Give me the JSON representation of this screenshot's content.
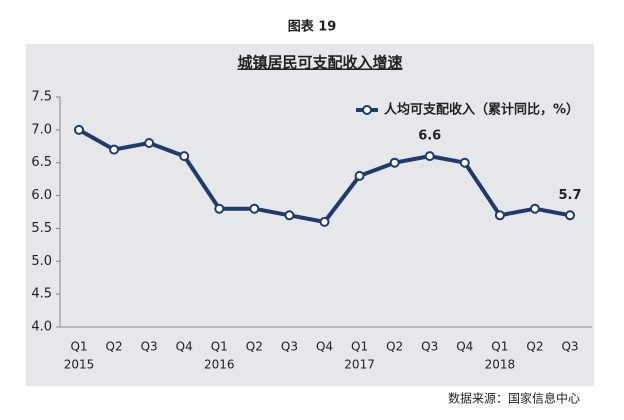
{
  "figure_label": "图表 19",
  "source": "数据来源：国家信息中心",
  "chart_data": {
    "type": "line",
    "title": "城镇居民可支配收入增速",
    "categories": [
      "Q1",
      "Q2",
      "Q3",
      "Q4",
      "Q1",
      "Q2",
      "Q3",
      "Q4",
      "Q1",
      "Q2",
      "Q3",
      "Q4",
      "Q1",
      "Q2",
      "Q3"
    ],
    "year_labels": [
      "2015",
      null,
      null,
      null,
      "2016",
      null,
      null,
      null,
      "2017",
      null,
      null,
      null,
      "2018",
      null,
      null
    ],
    "series": [
      {
        "name": "人均可支配收入（累计同比，%）",
        "color": "#1f3a6b",
        "values": [
          7.0,
          6.7,
          6.8,
          6.6,
          5.8,
          5.8,
          5.7,
          5.6,
          6.3,
          6.5,
          6.6,
          6.5,
          5.7,
          5.8,
          5.7
        ],
        "value_labels": [
          null,
          null,
          null,
          null,
          null,
          null,
          null,
          null,
          null,
          null,
          "6.6",
          null,
          null,
          null,
          "5.7"
        ]
      }
    ],
    "ylim": [
      4.0,
      7.5
    ],
    "yticks": [
      {
        "value": 4.0,
        "label": "4.0"
      },
      {
        "value": 4.5,
        "label": "4.5"
      },
      {
        "value": 5.0,
        "label": "5.0"
      },
      {
        "value": 5.5,
        "label": "5.5"
      },
      {
        "value": 6.0,
        "label": "6.0"
      },
      {
        "value": 6.5,
        "label": "6.5"
      },
      {
        "value": 7.0,
        "label": "7.0"
      },
      {
        "value": 7.5,
        "label": "7.5"
      }
    ],
    "legend": "top-right"
  }
}
